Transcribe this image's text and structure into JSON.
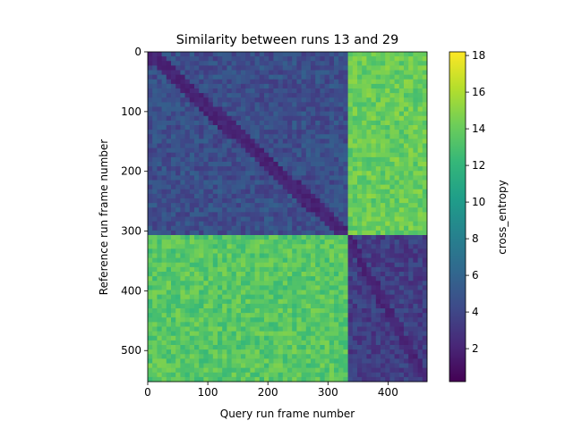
{
  "chart_data": {
    "type": "heatmap",
    "title": "Similarity between runs 13 and 29",
    "xlabel": "Query run frame number",
    "ylabel": "Reference run frame number",
    "x_range": [
      0,
      465
    ],
    "y_range": [
      0,
      552
    ],
    "x_ticks": [
      0,
      100,
      200,
      300,
      400
    ],
    "y_ticks": [
      0,
      100,
      200,
      300,
      400,
      500
    ],
    "y_inverted": true,
    "colormap": "viridis",
    "colorbar": {
      "label": "cross_entropy",
      "range": [
        0.2,
        18.2
      ],
      "ticks": [
        2,
        4,
        6,
        8,
        10,
        12,
        14,
        16,
        18
      ]
    },
    "block_boundaries": {
      "x": 333,
      "y": 310
    },
    "regions": [
      {
        "name": "upper-left block (ref 0-310, query 0-333)",
        "value_range": [
          1,
          8
        ],
        "typical": 4.5
      },
      {
        "name": "upper-right block (ref 0-310, query 333-465)",
        "value_range": [
          11,
          17
        ],
        "typical": 14
      },
      {
        "name": "lower-left block (ref 310-552, query 0-333)",
        "value_range": [
          10,
          17
        ],
        "typical": 13.5
      },
      {
        "name": "lower-right block (ref 310-552, query 333-465)",
        "value_range": [
          1,
          7
        ],
        "typical": 3.5
      },
      {
        "name": "diagonal band",
        "value_range": [
          0.2,
          3
        ],
        "typical": 1.5
      }
    ]
  }
}
